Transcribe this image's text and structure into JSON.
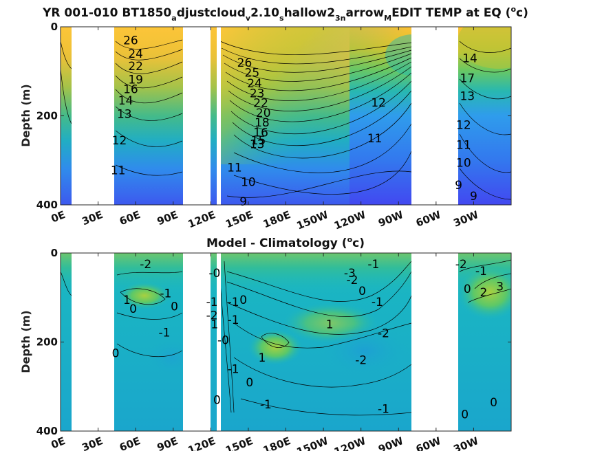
{
  "chart_data": [
    {
      "type": "heatmap",
      "title_parts": [
        {
          "t": "YR 001-010 BT1850"
        },
        {
          "t": "a",
          "s": "sub"
        },
        {
          "t": "djustcloud"
        },
        {
          "t": "v",
          "s": "sub"
        },
        {
          "t": "2.10"
        },
        {
          "t": "s",
          "s": "sub"
        },
        {
          "t": "hallow2"
        },
        {
          "t": "3n",
          "s": "sub"
        },
        {
          "t": "arrow"
        },
        {
          "t": "M",
          "s": "sub"
        },
        {
          "t": "EDIT TEMP at EQ ("
        },
        {
          "t": "o",
          "s": "sup"
        },
        {
          "t": "c)"
        }
      ],
      "ylabel": "Depth (m)",
      "xlabel": "",
      "x_ticks": [
        "0E",
        "30E",
        "60E",
        "90E",
        "120E",
        "150E",
        "180E",
        "150W",
        "120W",
        "90W",
        "60W",
        "30W"
      ],
      "y_ticks": [
        "0",
        "200",
        "400"
      ],
      "xlim_lon_east": [
        0,
        360
      ],
      "ylim_depth_m": [
        400,
        0
      ],
      "land_mask_lon_east": [
        [
          8,
          44
        ],
        [
          98,
          120
        ],
        [
          125,
          127
        ],
        [
          262,
          296
        ]
      ],
      "colormap": [
        "#3d3df0",
        "#2f8cf0",
        "#1db8b8",
        "#50c870",
        "#a8c83a",
        "#f5b030",
        "#fcd03a"
      ],
      "contour_labels": [
        {
          "text": "26",
          "lon": 56,
          "depth": 30
        },
        {
          "text": "24",
          "lon": 60,
          "depth": 60
        },
        {
          "text": "22",
          "lon": 60,
          "depth": 88
        },
        {
          "text": "19",
          "lon": 60,
          "depth": 118
        },
        {
          "text": "16",
          "lon": 56,
          "depth": 140
        },
        {
          "text": "14",
          "lon": 52,
          "depth": 165
        },
        {
          "text": "13",
          "lon": 51,
          "depth": 195
        },
        {
          "text": "12",
          "lon": 47,
          "depth": 255
        },
        {
          "text": "11",
          "lon": 46,
          "depth": 322
        },
        {
          "text": "26",
          "lon": 147,
          "depth": 80
        },
        {
          "text": "25",
          "lon": 153,
          "depth": 103
        },
        {
          "text": "24",
          "lon": 155,
          "depth": 127
        },
        {
          "text": "23",
          "lon": 157,
          "depth": 149
        },
        {
          "text": "22",
          "lon": 160,
          "depth": 171
        },
        {
          "text": "20",
          "lon": 162,
          "depth": 193
        },
        {
          "text": "18",
          "lon": 161,
          "depth": 215
        },
        {
          "text": "16",
          "lon": 160,
          "depth": 237
        },
        {
          "text": "15",
          "lon": 158,
          "depth": 255
        },
        {
          "text": "13",
          "lon": 157,
          "depth": 263
        },
        {
          "text": "11",
          "lon": 139,
          "depth": 316
        },
        {
          "text": "10",
          "lon": 150,
          "depth": 348
        },
        {
          "text": "9",
          "lon": 146,
          "depth": 392
        },
        {
          "text": "12",
          "lon": 254,
          "depth": 170
        },
        {
          "text": "11",
          "lon": 251,
          "depth": 250
        },
        {
          "text": "14",
          "lon": 327,
          "depth": 70
        },
        {
          "text": "17",
          "lon": 325,
          "depth": 115
        },
        {
          "text": "13",
          "lon": 325,
          "depth": 155
        },
        {
          "text": "12",
          "lon": 322,
          "depth": 220
        },
        {
          "text": "11",
          "lon": 322,
          "depth": 265
        },
        {
          "text": "10",
          "lon": 322,
          "depth": 305
        },
        {
          "text": "9",
          "lon": 318,
          "depth": 355
        },
        {
          "text": "9",
          "lon": 330,
          "depth": 380
        }
      ]
    },
    {
      "type": "heatmap",
      "title_parts": [
        {
          "t": "Model - Climatology ("
        },
        {
          "t": "o",
          "s": "sup"
        },
        {
          "t": "c)"
        }
      ],
      "ylabel": "Depth (m)",
      "xlabel": "",
      "x_ticks": [
        "0E",
        "30E",
        "60E",
        "90E",
        "120E",
        "150E",
        "180E",
        "150W",
        "120W",
        "90W",
        "60W",
        "30W"
      ],
      "y_ticks": [
        "0",
        "200",
        "400"
      ],
      "xlim_lon_east": [
        0,
        360
      ],
      "ylim_depth_m": [
        400,
        0
      ],
      "land_mask_lon_east": [
        [
          8,
          44
        ],
        [
          98,
          120
        ],
        [
          125,
          127
        ],
        [
          262,
          296
        ]
      ],
      "colormap": [
        "#3d3df0",
        "#2f8cf0",
        "#1db8b8",
        "#50c870",
        "#a8c83a",
        "#f5b030",
        "#fcd03a"
      ],
      "contour_labels": [
        {
          "text": "-2",
          "lon": 68,
          "depth": 25
        },
        {
          "text": "-1",
          "lon": 84,
          "depth": 90
        },
        {
          "text": "1",
          "lon": 53,
          "depth": 105
        },
        {
          "text": "0",
          "lon": 58,
          "depth": 125
        },
        {
          "text": "0",
          "lon": 91,
          "depth": 120
        },
        {
          "text": "-1",
          "lon": 83,
          "depth": 178
        },
        {
          "text": "0",
          "lon": 44,
          "depth": 225
        },
        {
          "text": "-0",
          "lon": 123,
          "depth": 45
        },
        {
          "text": "-1",
          "lon": 121,
          "depth": 110
        },
        {
          "text": "-2",
          "lon": 121,
          "depth": 140
        },
        {
          "text": "1",
          "lon": 123,
          "depth": 160
        },
        {
          "text": "-0",
          "lon": 130,
          "depth": 195
        },
        {
          "text": "-1",
          "lon": 138,
          "depth": 110
        },
        {
          "text": "-1",
          "lon": 138,
          "depth": 150
        },
        {
          "text": "0",
          "lon": 146,
          "depth": 105
        },
        {
          "text": "-1",
          "lon": 138,
          "depth": 260
        },
        {
          "text": "0",
          "lon": 151,
          "depth": 290
        },
        {
          "text": "-1",
          "lon": 164,
          "depth": 340
        },
        {
          "text": "0",
          "lon": 125,
          "depth": 330
        },
        {
          "text": "1",
          "lon": 161,
          "depth": 235
        },
        {
          "text": "-3",
          "lon": 231,
          "depth": 45
        },
        {
          "text": "-2",
          "lon": 233,
          "depth": 60
        },
        {
          "text": "-1",
          "lon": 250,
          "depth": 25
        },
        {
          "text": "0",
          "lon": 241,
          "depth": 85
        },
        {
          "text": "-1",
          "lon": 253,
          "depth": 110
        },
        {
          "text": "1",
          "lon": 215,
          "depth": 160
        },
        {
          "text": "-2",
          "lon": 258,
          "depth": 180
        },
        {
          "text": "-2",
          "lon": 240,
          "depth": 240
        },
        {
          "text": "-1",
          "lon": 258,
          "depth": 350
        },
        {
          "text": "-2",
          "lon": 320,
          "depth": 25
        },
        {
          "text": "-1",
          "lon": 336,
          "depth": 40
        },
        {
          "text": "3",
          "lon": 351,
          "depth": 75
        },
        {
          "text": "2",
          "lon": 338,
          "depth": 88
        },
        {
          "text": "0",
          "lon": 325,
          "depth": 80
        },
        {
          "text": "0",
          "lon": 346,
          "depth": 335
        },
        {
          "text": "0",
          "lon": 323,
          "depth": 362
        }
      ]
    }
  ]
}
